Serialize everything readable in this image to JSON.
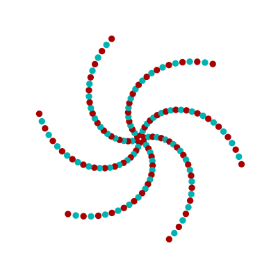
{
  "figure": {
    "type": "spiral-dot-pattern",
    "background": "#ffffff",
    "colors": {
      "primary": "#a80000",
      "secondary": "#00b3b3"
    },
    "arms": 6,
    "dots_per_arm": 25,
    "coloring": "alternating"
  }
}
